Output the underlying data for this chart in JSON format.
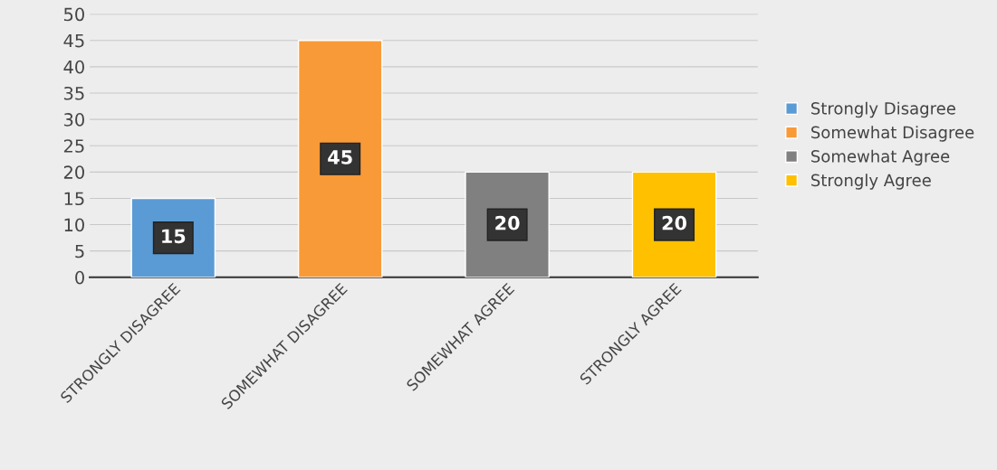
{
  "chart_data": {
    "type": "bar",
    "categories": [
      "STRONGLY DISAGREE",
      "SOMEWHAT DISAGREE",
      "SOMEWHAT AGREE",
      "STRONGLY AGREE"
    ],
    "series": [
      {
        "name": "Strongly Disagree",
        "color": "#5b9bd5",
        "values": [
          15,
          null,
          null,
          null
        ]
      },
      {
        "name": "Somewhat Disagree",
        "color": "#f99a38",
        "values": [
          null,
          45,
          null,
          null
        ]
      },
      {
        "name": "Somewhat Agree",
        "color": "#808080",
        "values": [
          null,
          null,
          20,
          null
        ]
      },
      {
        "name": "Strongly Agree",
        "color": "#ffc000",
        "values": [
          null,
          null,
          null,
          20
        ]
      }
    ],
    "ylim": [
      0,
      50
    ],
    "yticks": [
      0,
      5,
      10,
      15,
      20,
      25,
      30,
      35,
      40,
      45,
      50
    ],
    "grid": "y",
    "legend": "right",
    "data_labels": true
  }
}
